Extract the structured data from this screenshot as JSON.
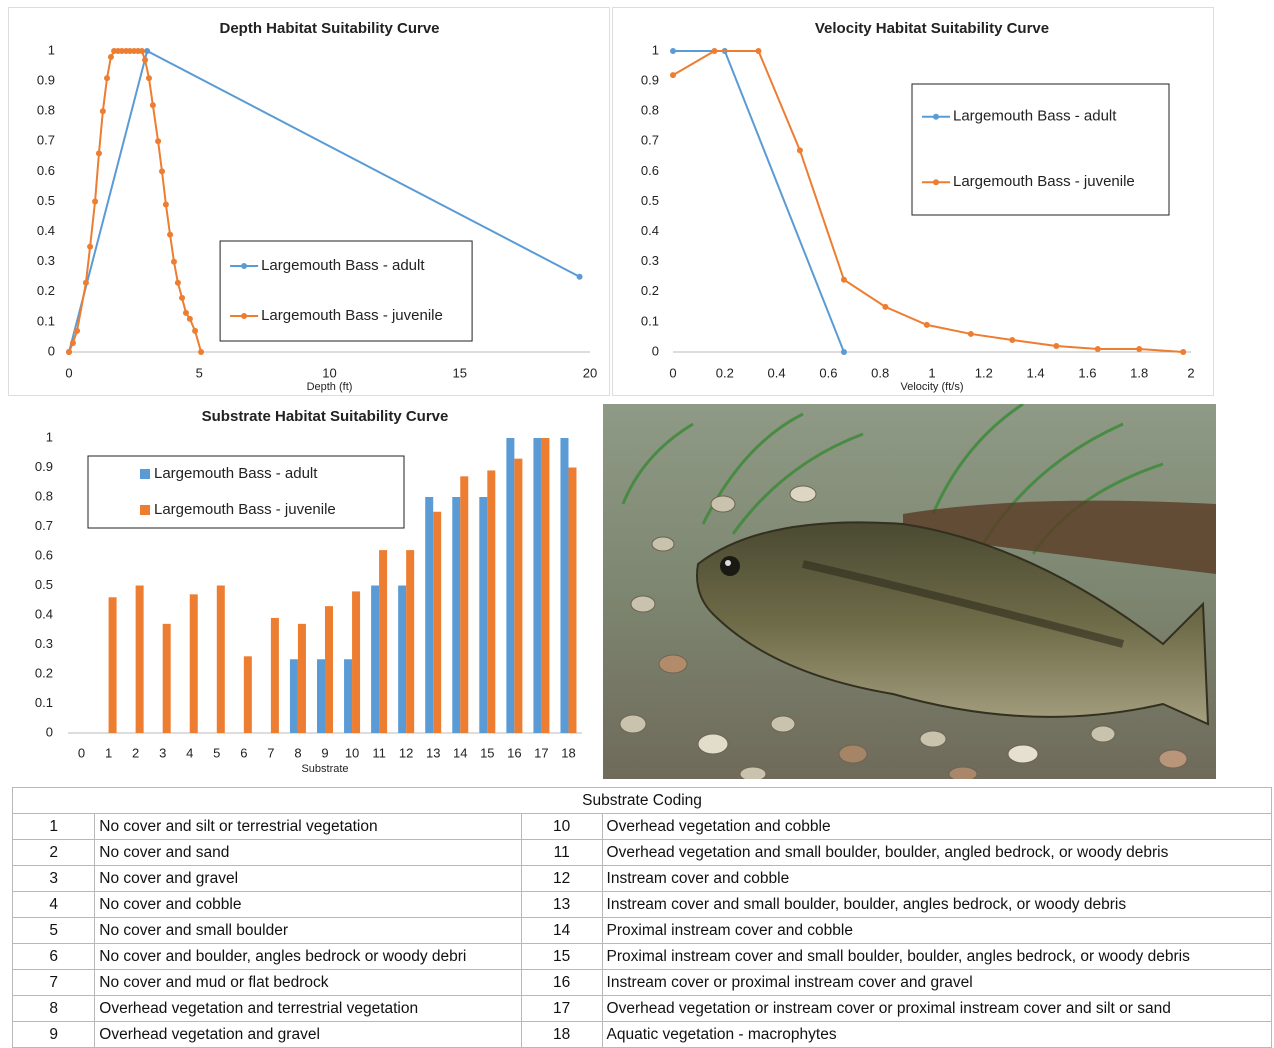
{
  "chart_data": [
    {
      "type": "line",
      "title": "Depth Habitat Suitability Curve",
      "xlabel": "Depth (ft)",
      "xlim": [
        0,
        20
      ],
      "xticks": [
        0,
        5,
        10,
        15,
        20
      ],
      "ylim": [
        0,
        1
      ],
      "yticks": [
        0,
        0.1,
        0.2,
        0.3,
        0.4,
        0.5,
        0.6,
        0.7,
        0.8,
        0.9,
        1
      ],
      "grid": false,
      "legend": "lower center",
      "series": [
        {
          "name": "Largemouth Bass - adult",
          "color": "#5b9bd5",
          "x": [
            0,
            3,
            19.6
          ],
          "values": [
            0,
            1,
            0.25
          ]
        },
        {
          "name": "Largemouth Bass - juvenile",
          "color": "#ed7d31",
          "x": [
            0,
            0.15,
            0.31,
            0.65,
            0.81,
            1.0,
            1.15,
            1.3,
            1.46,
            1.61,
            1.73,
            1.88,
            2.03,
            2.19,
            2.34,
            2.5,
            2.65,
            2.8,
            2.92,
            3.07,
            3.22,
            3.42,
            3.57,
            3.72,
            3.88,
            4.03,
            4.18,
            4.34,
            4.49,
            4.64,
            4.84,
            5.07
          ],
          "values": [
            0,
            0.03,
            0.07,
            0.23,
            0.35,
            0.5,
            0.66,
            0.8,
            0.91,
            0.98,
            1,
            1,
            1,
            1,
            1,
            1,
            1,
            1,
            0.97,
            0.91,
            0.82,
            0.7,
            0.6,
            0.49,
            0.39,
            0.3,
            0.23,
            0.18,
            0.13,
            0.11,
            0.07,
            0
          ]
        }
      ]
    },
    {
      "type": "line",
      "title": "Velocity Habitat Suitability Curve",
      "xlabel": "Velocity (ft/s)",
      "xlim": [
        0,
        2
      ],
      "xticks": [
        0,
        0.2,
        0.4,
        0.6,
        0.8,
        1,
        1.2,
        1.4,
        1.6,
        1.8,
        2
      ],
      "ylim": [
        0,
        1
      ],
      "yticks": [
        0,
        0.1,
        0.2,
        0.3,
        0.4,
        0.5,
        0.6,
        0.7,
        0.8,
        0.9,
        1
      ],
      "grid": false,
      "legend": "upper right",
      "series": [
        {
          "name": "Largemouth Bass - adult",
          "color": "#5b9bd5",
          "x": [
            0,
            0.2,
            0.66
          ],
          "values": [
            1,
            1,
            0
          ]
        },
        {
          "name": "Largemouth Bass - juvenile",
          "color": "#ed7d31",
          "x": [
            0,
            0.16,
            0.33,
            0.49,
            0.66,
            0.82,
            0.98,
            1.15,
            1.31,
            1.48,
            1.64,
            1.8,
            1.97
          ],
          "values": [
            0.92,
            1,
            1,
            0.67,
            0.24,
            0.15,
            0.09,
            0.06,
            0.04,
            0.02,
            0.01,
            0.01,
            0
          ]
        }
      ]
    },
    {
      "type": "bar",
      "title": "Substrate Habitat Suitability Curve",
      "xlabel": "Substrate",
      "categories": [
        "0",
        "1",
        "2",
        "3",
        "4",
        "5",
        "6",
        "7",
        "8",
        "9",
        "10",
        "11",
        "12",
        "13",
        "14",
        "15",
        "16",
        "17",
        "18"
      ],
      "ylim": [
        0,
        1
      ],
      "yticks": [
        0,
        0.1,
        0.2,
        0.3,
        0.4,
        0.5,
        0.6,
        0.7,
        0.8,
        0.9,
        1
      ],
      "grid": false,
      "legend": "upper left",
      "series": [
        {
          "name": "Largemouth Bass - adult",
          "color": "#5b9bd5",
          "values": [
            0,
            0,
            0,
            0,
            0,
            0,
            0,
            0,
            0.25,
            0.25,
            0.25,
            0.5,
            0.5,
            0.8,
            0.8,
            0.8,
            1,
            1,
            1
          ]
        },
        {
          "name": "Largemouth Bass - juvenile",
          "color": "#ed7d31",
          "values": [
            0,
            0.46,
            0.5,
            0.37,
            0.47,
            0.5,
            0.26,
            0.39,
            0.37,
            0.43,
            0.48,
            0.62,
            0.62,
            0.75,
            0.87,
            0.89,
            0.93,
            1,
            0.9
          ]
        }
      ]
    }
  ],
  "table": {
    "title": "Substrate Coding",
    "rows": [
      [
        1,
        "No cover and silt or terrestrial vegetation",
        10,
        "Overhead vegetation and cobble"
      ],
      [
        2,
        "No cover and sand",
        11,
        "Overhead vegetation and small boulder, boulder, angled bedrock, or woody debris"
      ],
      [
        3,
        "No cover and gravel",
        12,
        "Instream cover and cobble"
      ],
      [
        4,
        "No cover and cobble",
        13,
        "Instream cover and small boulder, boulder, angles bedrock, or woody debris"
      ],
      [
        5,
        "No cover and small boulder",
        14,
        "Proximal instream cover and cobble"
      ],
      [
        6,
        "No cover and boulder, angles bedrock or woody debri",
        15,
        "Proximal instream cover and small boulder, boulder, angles bedrock, or woody debris"
      ],
      [
        7,
        "No cover and mud or flat bedrock",
        16,
        "Instream cover or proximal instream cover and gravel"
      ],
      [
        8,
        "Overhead vegetation and terrestrial vegetation",
        17,
        "Overhead vegetation or instream cover or proximal instream cover and silt or sand"
      ],
      [
        9,
        "Overhead vegetation and gravel",
        18,
        "Aquatic vegetation - macrophytes"
      ]
    ]
  }
}
